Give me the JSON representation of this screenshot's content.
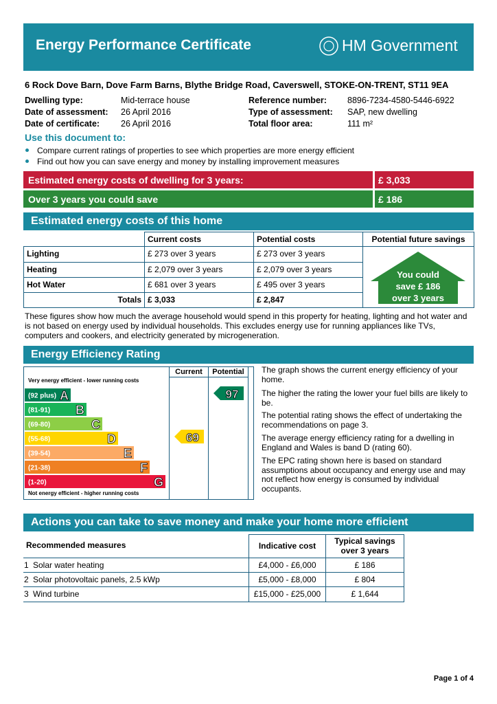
{
  "header": {
    "title": "Energy Performance Certificate",
    "logo": "HM Government"
  },
  "address": "6 Rock Dove Barn, Dove Farm Barns, Blythe Bridge Road, Caverswell, STOKE-ON-TRENT, ST11 9EA",
  "details": {
    "left": [
      [
        "Dwelling type:",
        "Mid-terrace house"
      ],
      [
        "Date of assessment:",
        "26   April   2016"
      ],
      [
        "Date of certificate:",
        "26   April   2016"
      ]
    ],
    "right": [
      [
        "Reference number:",
        "8896-7234-4580-5446-6922"
      ],
      [
        "Type of assessment:",
        "SAP, new dwelling"
      ],
      [
        "Total floor area:",
        "111 m²"
      ]
    ]
  },
  "use_heading": "Use this document to:",
  "bullets": [
    "Compare current ratings of properties to see which properties are more energy efficient",
    "Find out how you can save energy and money by installing improvement measures"
  ],
  "cost_bars": [
    {
      "label": "Estimated energy costs of dwelling for 3 years:",
      "value": "£ 3,033"
    },
    {
      "label": "Over 3 years you could save",
      "value": "£ 186"
    }
  ],
  "costs": {
    "title": "Estimated energy costs of this home",
    "headers": [
      "Current costs",
      "Potential costs",
      "Potential future savings"
    ],
    "rows": [
      [
        "Lighting",
        "£ 273 over 3 years",
        "£ 273 over 3 years"
      ],
      [
        "Heating",
        "£ 2,079 over 3 years",
        "£ 2,079 over 3 years"
      ],
      [
        "Hot Water",
        "£ 681 over 3 years",
        "£ 495 over 3 years"
      ]
    ],
    "totals": [
      "Totals",
      "£ 3,033",
      "£ 2,847"
    ],
    "savings": [
      "You could",
      "save £ 186",
      "over 3 years"
    ]
  },
  "note": "These figures show how much the average household would spend in this property for heating, lighting and hot water and is not based on energy used by individual households. This excludes energy use for running appliances like TVs, computers and cookers, and electricity generated by microgeneration.",
  "rating": {
    "title": "Energy Efficiency Rating",
    "top_label": "Very energy efficient - lower running costs",
    "bottom_label": "Not energy efficient - higher running costs",
    "columns": [
      "Current",
      "Potential"
    ],
    "bands": [
      {
        "range": "(92 plus)",
        "letter": "A",
        "color": "#008054"
      },
      {
        "range": "(81-91)",
        "letter": "B",
        "color": "#19b459"
      },
      {
        "range": "(69-80)",
        "letter": "C",
        "color": "#8dce46"
      },
      {
        "range": "(55-68)",
        "letter": "D",
        "color": "#ffd500"
      },
      {
        "range": "(39-54)",
        "letter": "E",
        "color": "#fcaa65"
      },
      {
        "range": "(21-38)",
        "letter": "F",
        "color": "#ef8023"
      },
      {
        "range": "(1-20)",
        "letter": "G",
        "color": "#e9153b"
      }
    ],
    "current": 69,
    "potential": 97,
    "paragraphs": [
      "The graph shows the current energy efficiency of your home.",
      "The higher the rating the lower your fuel bills are likely to be.",
      "The potential rating shows the effect of undertaking the recommendations on page 3.",
      "The average energy efficiency rating for a dwelling in England and Wales is band D (rating 60).",
      "The EPC rating shown here is based on standard assumptions about occupancy and energy use and may not reflect how energy is consumed by individual occupants."
    ]
  },
  "actions": {
    "title": "Actions you can take to save money and make your home more efficient",
    "headers": [
      "Recommended measures",
      "Indicative cost",
      "Typical savings over 3 years"
    ],
    "rows": [
      [
        "1",
        "Solar water heating",
        "£4,000 - £6,000",
        "£ 186"
      ],
      [
        "2",
        "Solar photovoltaic panels, 2.5 kWp",
        "£5,000 - £8,000",
        "£ 804"
      ],
      [
        "3",
        "Wind turbine",
        "£15,000 - £25,000",
        "£ 1,644"
      ]
    ]
  },
  "footer": "Page 1 of 4"
}
